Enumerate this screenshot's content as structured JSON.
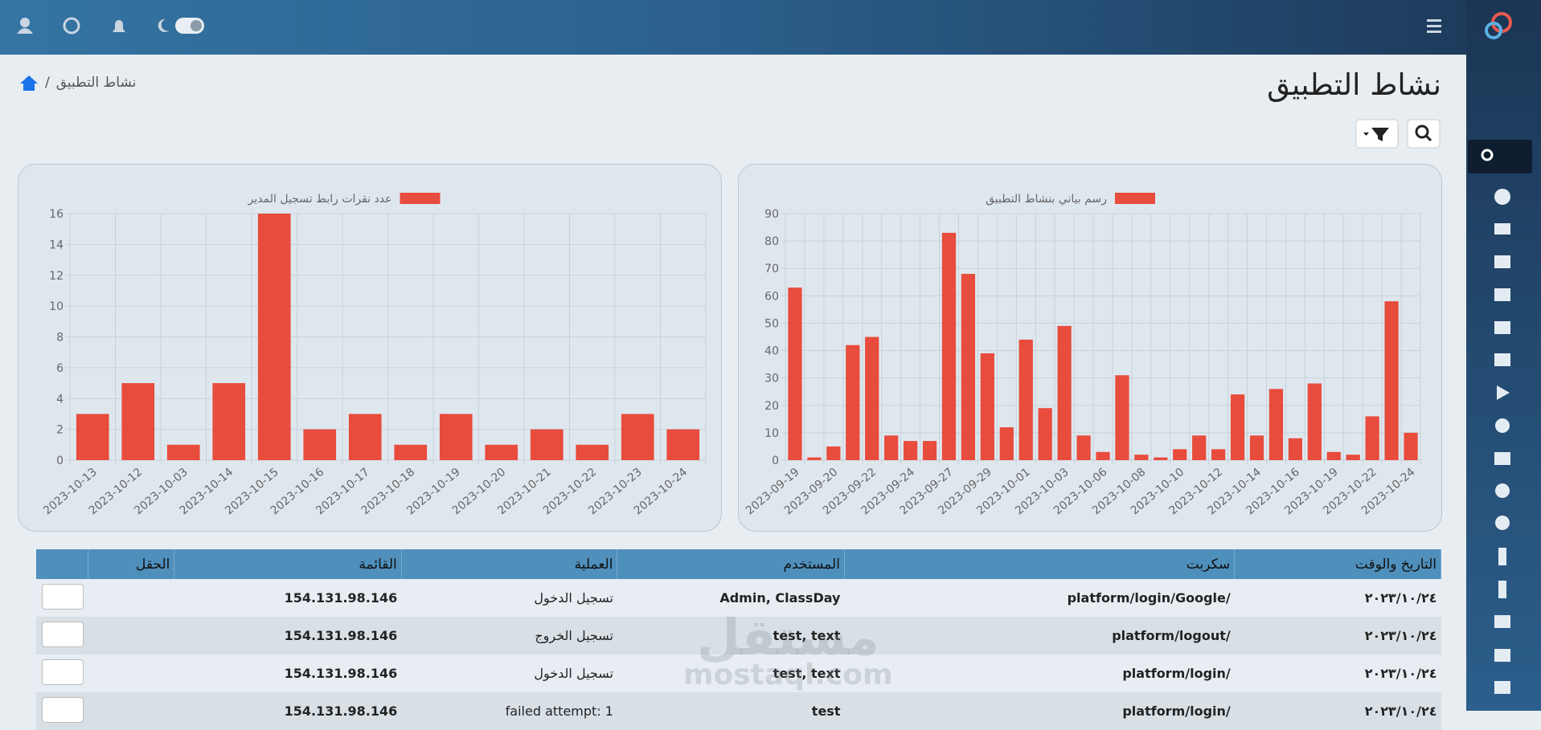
{
  "header": {
    "title": "نشاط التطبيق"
  },
  "breadcrumb": {
    "current": "نشاط التطبيق"
  },
  "chart_data": [
    {
      "type": "bar",
      "categories": [
        "2023-09-19",
        null,
        "2023-09-20",
        null,
        "2023-09-22",
        null,
        "2023-09-24",
        null,
        "2023-09-27",
        null,
        "2023-09-29",
        null,
        "2023-10-01",
        null,
        "2023-10-03",
        null,
        "2023-10-06",
        null,
        "2023-10-08",
        null,
        "2023-10-10",
        null,
        "2023-10-12",
        null,
        "2023-10-14",
        null,
        "2023-10-16",
        null,
        "2023-10-19",
        null,
        "2023-10-22",
        null,
        "2023-10-24"
      ],
      "series": [
        {
          "name": "رسم بياني بنشاط التطبيق",
          "color": "#e84c3d",
          "values": [
            63,
            1,
            5,
            42,
            45,
            9,
            7,
            7,
            83,
            68,
            39,
            12,
            44,
            19,
            49,
            9,
            3,
            31,
            2,
            1,
            4,
            9,
            4,
            24,
            9,
            26,
            8,
            28,
            3,
            2,
            16,
            58,
            10
          ]
        }
      ],
      "ylim": [
        0,
        90
      ],
      "yticks": [
        0,
        10,
        20,
        30,
        40,
        50,
        60,
        70,
        80,
        90
      ],
      "grid": true
    },
    {
      "type": "bar",
      "categories": [
        "2023-10-13",
        "2023-10-12",
        "2023-10-03",
        "2023-10-14",
        "2023-10-15",
        "2023-10-16",
        "2023-10-17",
        "2023-10-18",
        "2023-10-19",
        "2023-10-20",
        "2023-10-21",
        "2023-10-22",
        "2023-10-23",
        "2023-10-24"
      ],
      "series": [
        {
          "name": "عدد نقرات رابط تسجيل المدير",
          "color": "#e84c3d",
          "values": [
            3,
            5,
            1,
            5,
            16,
            2,
            3,
            1,
            3,
            1,
            2,
            1,
            3,
            2
          ]
        }
      ],
      "ylim": [
        0,
        16
      ],
      "yticks": [
        0,
        2,
        4,
        6,
        8,
        10,
        12,
        14,
        16
      ],
      "grid": true
    }
  ],
  "table": {
    "columns": [
      "التاريخ والوقت",
      "سكربت",
      "المستخدم",
      "العملية",
      "القائمة",
      "الحقل"
    ],
    "rows": [
      [
        "٢٠٢٣/١٠/٢٤",
        "/platform/login/Google",
        "Admin, ClassDay",
        "تسجيل الدخول",
        "154.131.98.146"
      ],
      [
        "٢٠٢٣/١٠/٢٤",
        "/platform/logout",
        "test, text",
        "تسجيل الخروج",
        "154.131.98.146"
      ],
      [
        "٢٠٢٣/١٠/٢٤",
        "/platform/login",
        "test, text",
        "تسجيل الدخول",
        "154.131.98.146"
      ],
      [
        "٢٠٢٣/١٠/٢٤",
        "/platform/login",
        "test",
        "failed attempt: 1",
        "154.131.98.146"
      ]
    ]
  },
  "watermark": {
    "arabic": "مستقل",
    "latin": "mostaql.com"
  }
}
